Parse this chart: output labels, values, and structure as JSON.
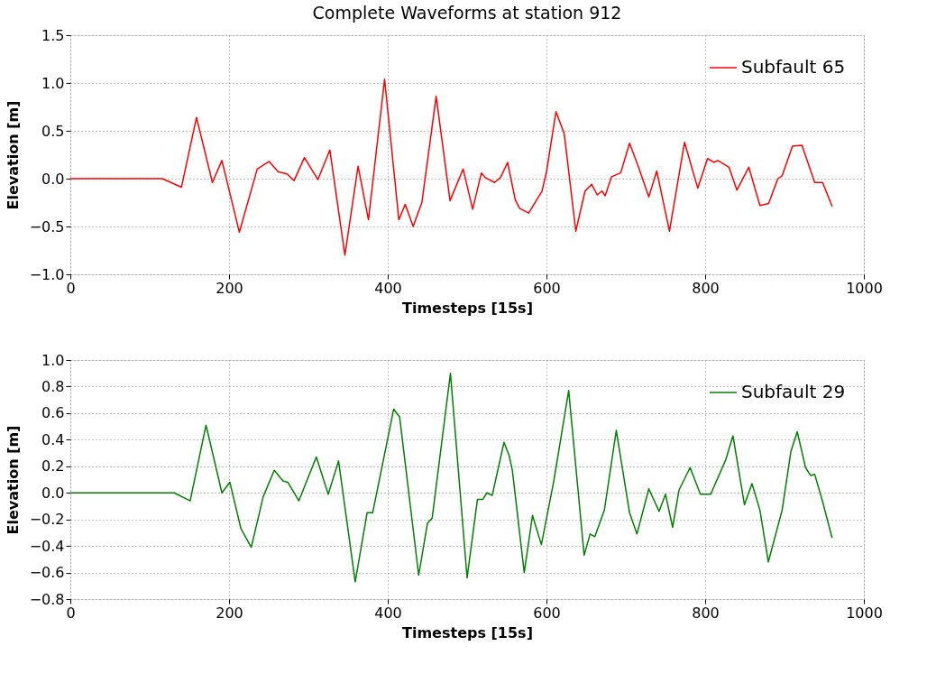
{
  "chart_data": [
    {
      "type": "line",
      "title": "Complete Waveforms at station 912",
      "xlabel": "Timesteps [15s]",
      "ylabel": "Elevation [m]",
      "xlim": [
        0,
        1000
      ],
      "xticks": [
        0,
        200,
        400,
        600,
        800,
        1000
      ],
      "ylim": [
        -1.0,
        1.5
      ],
      "yticks": [
        {
          "value": -1.0,
          "label": "−1.0"
        },
        {
          "value": -0.5,
          "label": "−0.5"
        },
        {
          "value": 0,
          "label": "0.0"
        },
        {
          "value": 0.5,
          "label": "0.5"
        },
        {
          "value": 1.0,
          "label": "1.0"
        },
        {
          "value": 1.5,
          "label": "1.5"
        }
      ],
      "grid": true,
      "legend": "top right",
      "line_style": "solid",
      "marker": "none",
      "series": [
        {
          "name": "Subfault 65",
          "color": "#ff0000",
          "x": [
            0,
            116,
            140,
            159,
            179,
            191,
            213,
            235.5,
            250.5,
            262,
            273,
            282,
            295,
            312,
            327,
            346,
            362.6,
            375.7,
            396,
            414,
            422,
            432,
            443,
            461,
            478.5,
            495,
            507,
            518,
            523,
            534.6,
            542,
            551,
            560.7,
            566,
            577.6,
            594.4,
            600,
            612,
            622.4,
            637,
            648.6,
            657,
            664,
            670,
            674,
            682,
            693.5,
            704.7,
            716,
            729,
            739,
            755,
            774,
            790.7,
            803,
            811,
            816,
            830,
            840,
            855,
            869,
            880,
            891.6,
            897,
            910,
            922,
            938,
            948,
            960
          ],
          "values": [
            0,
            0,
            -0.09,
            0.64,
            -0.04,
            0.19,
            -0.56,
            0.1,
            0.18,
            0.07,
            0.05,
            -0.02,
            0.22,
            -0.01,
            0.3,
            -0.8,
            0.13,
            -0.43,
            1.04,
            -0.43,
            -0.27,
            -0.5,
            -0.25,
            0.86,
            -0.23,
            0.1,
            -0.32,
            0.06,
            0.01,
            -0.04,
            0.01,
            0.17,
            -0.22,
            -0.31,
            -0.36,
            -0.13,
            0.07,
            0.7,
            0.47,
            -0.55,
            -0.13,
            -0.06,
            -0.17,
            -0.13,
            -0.18,
            0.02,
            0.06,
            0.37,
            0.12,
            -0.19,
            0.08,
            -0.55,
            0.38,
            -0.1,
            0.21,
            0.17,
            0.19,
            0.12,
            -0.12,
            0.12,
            -0.28,
            -0.26,
            0.0,
            0.03,
            0.34,
            0.35,
            -0.04,
            -0.04,
            -0.29
          ]
        }
      ]
    },
    {
      "type": "line",
      "xlabel": "Timesteps [15s]",
      "ylabel": "Elevation [m]",
      "xlim": [
        0,
        1000
      ],
      "xticks": [
        0,
        200,
        400,
        600,
        800,
        1000
      ],
      "ylim": [
        -0.8,
        1.0
      ],
      "yticks": [
        {
          "value": -0.8,
          "label": "−0.8"
        },
        {
          "value": -0.6,
          "label": "−0.6"
        },
        {
          "value": -0.4,
          "label": "−0.4"
        },
        {
          "value": -0.2,
          "label": "−0.2"
        },
        {
          "value": 0,
          "label": "0.0"
        },
        {
          "value": 0.2,
          "label": "0.2"
        },
        {
          "value": 0.4,
          "label": "0.4"
        },
        {
          "value": 0.6,
          "label": "0.6"
        },
        {
          "value": 0.8,
          "label": "0.8"
        },
        {
          "value": 1.0,
          "label": "1.0"
        }
      ],
      "grid": true,
      "legend": "top right",
      "line_style": "solid",
      "marker": "none",
      "series": [
        {
          "name": "Subfault 29",
          "color": "#008000",
          "x": [
            0,
            131,
            151,
            171,
            191,
            201,
            215,
            228,
            243,
            257,
            268,
            274,
            288,
            310,
            325,
            338,
            359,
            374,
            381,
            407.5,
            415,
            439,
            450,
            456,
            479,
            500,
            513,
            519.6,
            525,
            531.6,
            546.5,
            553,
            557,
            572,
            582.4,
            593.6,
            609,
            628,
            647.5,
            655,
            661,
            673,
            688,
            704.7,
            714,
            729,
            742,
            750,
            759,
            767,
            781,
            794,
            807,
            826,
            835,
            849.5,
            859,
            869,
            879.6,
            897,
            908,
            916,
            926.5,
            933,
            938,
            947.7,
            960
          ],
          "values": [
            0,
            0,
            -0.06,
            0.51,
            0,
            0.08,
            -0.27,
            -0.41,
            -0.03,
            0.17,
            0.09,
            0.08,
            -0.06,
            0.27,
            -0.01,
            0.24,
            -0.67,
            -0.15,
            -0.15,
            0.63,
            0.57,
            -0.62,
            -0.23,
            -0.19,
            0.9,
            -0.64,
            -0.05,
            -0.05,
            0.0,
            -0.02,
            0.38,
            0.28,
            0.17,
            -0.6,
            -0.17,
            -0.39,
            0.08,
            0.77,
            -0.47,
            -0.31,
            -0.33,
            -0.13,
            0.47,
            -0.15,
            -0.31,
            0.03,
            -0.14,
            -0.01,
            -0.26,
            0.02,
            0.19,
            -0.01,
            -0.01,
            0.25,
            0.43,
            -0.09,
            0.07,
            -0.13,
            -0.52,
            -0.13,
            0.31,
            0.46,
            0.19,
            0.13,
            0.14,
            -0.06,
            -0.34
          ]
        }
      ]
    }
  ]
}
